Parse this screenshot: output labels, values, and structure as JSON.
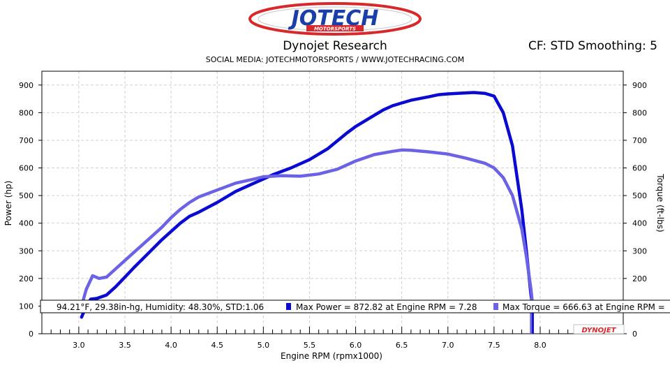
{
  "header": {
    "logo_text": "JOTECH",
    "logo_subtext": "MOTORSPORTS",
    "title": "Dynojet Research",
    "correction": "CF: STD Smoothing: 5",
    "subtitle": "SOCIAL MEDIA: JOTECHMOTORSPORTS    /    WWW.JOTECHRACING.COM"
  },
  "colors": {
    "power": "#0a0ad2",
    "torque": "#6b62e6",
    "plot_border": "#000000",
    "grid": "#cfcfcf",
    "logo_red": "#d8282c",
    "logo_blue": "#1a3fa8"
  },
  "chart_data": {
    "type": "line",
    "xlabel": "Engine RPM (rpmx1000)",
    "ylabel_left": "Power (hp)",
    "ylabel_right": "Torque (ft-lbs)",
    "xlim": [
      2.6,
      8.9
    ],
    "ylim": [
      0,
      950
    ],
    "x_ticks": [
      3.0,
      3.5,
      4.0,
      4.5,
      5.0,
      5.5,
      6.0,
      6.5,
      7.0,
      7.5,
      8.0
    ],
    "x_tick_labels": [
      "3.0",
      "3.5",
      "4.0",
      "4.5",
      "5.0",
      "5.5",
      "6.0",
      "6.5",
      "7.0",
      "7.5",
      "8.0"
    ],
    "y_ticks": [
      0,
      100,
      200,
      300,
      400,
      500,
      600,
      700,
      800,
      900
    ],
    "y_tick_labels": [
      "0",
      "100",
      "200",
      "300",
      "400",
      "500",
      "600",
      "700",
      "800",
      "900"
    ],
    "grid": true,
    "legend": {
      "conditions": "94.21°F, 29.38in-hg, Humidity: 48.30%, STD:1.06",
      "power_label": "Max Power = 872.82 at Engine RPM = 7.28",
      "torque_label": "Max Torque = 666.63 at Engine RPM ="
    },
    "brand_badge": "DYNOJET",
    "series": [
      {
        "name": "Power",
        "x": [
          3.03,
          3.08,
          3.13,
          3.2,
          3.3,
          3.4,
          3.5,
          3.6,
          3.75,
          3.9,
          4.0,
          4.1,
          4.2,
          4.3,
          4.5,
          4.7,
          4.9,
          5.0,
          5.1,
          5.3,
          5.5,
          5.7,
          5.9,
          6.0,
          6.2,
          6.3,
          6.4,
          6.5,
          6.6,
          6.8,
          6.9,
          7.0,
          7.1,
          7.28,
          7.4,
          7.5,
          7.6,
          7.7,
          7.8,
          7.85,
          7.9,
          7.92
        ],
        "y": [
          60,
          100,
          125,
          128,
          140,
          170,
          205,
          240,
          290,
          340,
          370,
          400,
          425,
          440,
          475,
          515,
          545,
          560,
          575,
          600,
          630,
          670,
          725,
          750,
          790,
          810,
          825,
          835,
          845,
          858,
          865,
          868,
          870,
          873,
          870,
          860,
          800,
          680,
          450,
          300,
          140,
          100
        ]
      },
      {
        "name": "Torque",
        "x": [
          3.03,
          3.08,
          3.15,
          3.22,
          3.3,
          3.4,
          3.5,
          3.6,
          3.75,
          3.9,
          4.0,
          4.1,
          4.2,
          4.3,
          4.5,
          4.7,
          4.9,
          5.0,
          5.2,
          5.4,
          5.6,
          5.8,
          6.0,
          6.2,
          6.4,
          6.5,
          6.6,
          6.8,
          7.0,
          7.2,
          7.4,
          7.5,
          7.6,
          7.7,
          7.8,
          7.85,
          7.9,
          7.92
        ],
        "y": [
          100,
          160,
          210,
          200,
          205,
          235,
          265,
          295,
          340,
          385,
          420,
          450,
          475,
          495,
          520,
          545,
          560,
          568,
          572,
          570,
          578,
          595,
          625,
          648,
          660,
          665,
          664,
          658,
          650,
          635,
          617,
          600,
          565,
          500,
          380,
          280,
          160,
          100
        ]
      }
    ]
  }
}
